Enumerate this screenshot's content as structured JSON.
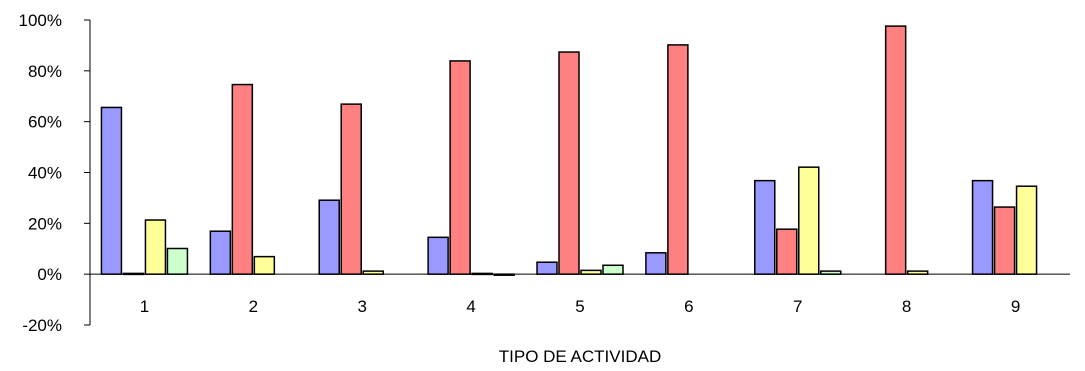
{
  "chart_data": {
    "type": "bar",
    "xlabel": "TIPO DE ACTIVIDAD",
    "categories": [
      "1",
      "2",
      "3",
      "4",
      "5",
      "6",
      "7",
      "8",
      "9"
    ],
    "ylim": [
      -20,
      100
    ],
    "yticks": [
      "-20%",
      "0%",
      "20%",
      "40%",
      "60%",
      "80%",
      "100%"
    ],
    "grid": false,
    "legend": "none",
    "series": [
      {
        "color": "#9999ff",
        "values": [
          65.6,
          16.9,
          29.1,
          14.5,
          4.7,
          8.4,
          36.8,
          0,
          36.8
        ]
      },
      {
        "color": "#ff8080",
        "values": [
          0.3,
          74.6,
          66.9,
          83.9,
          87.4,
          90.2,
          17.7,
          97.6,
          26.4
        ]
      },
      {
        "color": "#ffff99",
        "values": [
          21.3,
          6.9,
          1.2,
          0.3,
          1.5,
          0,
          42.1,
          1.2,
          34.6
        ]
      },
      {
        "color": "#ccffcc",
        "values": [
          10.1,
          0,
          0,
          -0.4,
          3.5,
          0,
          1.2,
          0,
          0
        ]
      }
    ]
  }
}
